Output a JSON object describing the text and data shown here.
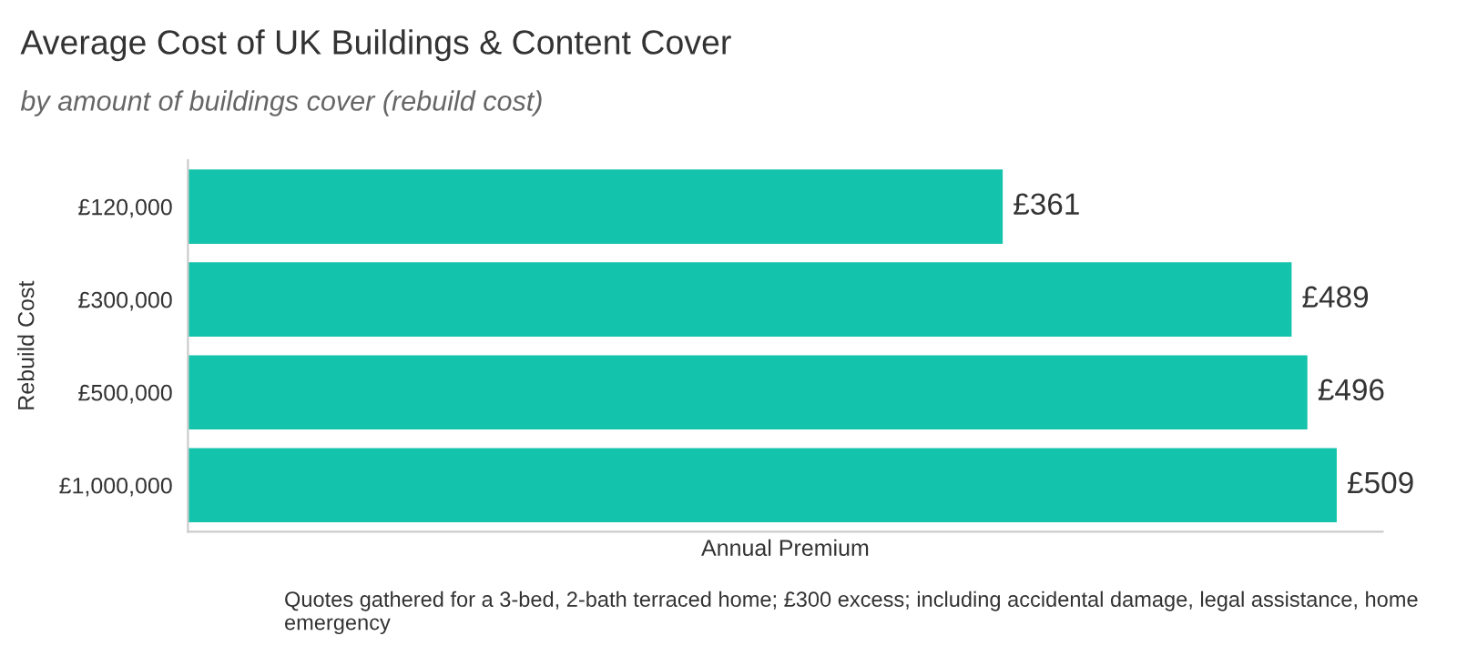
{
  "chart_data": {
    "type": "bar",
    "orientation": "horizontal",
    "title": "Average Cost of UK Buildings & Content Cover",
    "subtitle": "by amount of buildings cover (rebuild cost)",
    "xlabel": "Annual Premium",
    "ylabel": "Rebuild Cost",
    "categories": [
      "£120,000",
      "£300,000",
      "£500,000",
      "£1,000,000"
    ],
    "values": [
      361,
      489,
      496,
      509
    ],
    "value_labels": [
      "£361",
      "£489",
      "£496",
      "£509"
    ],
    "color": "#14c3ab",
    "tick_labels": "y",
    "annotations": [
      "Quotes gathered for a 3-bed, 2-bath terraced home; £300 excess; including accidental damage, legal assistance, home emergency"
    ]
  }
}
